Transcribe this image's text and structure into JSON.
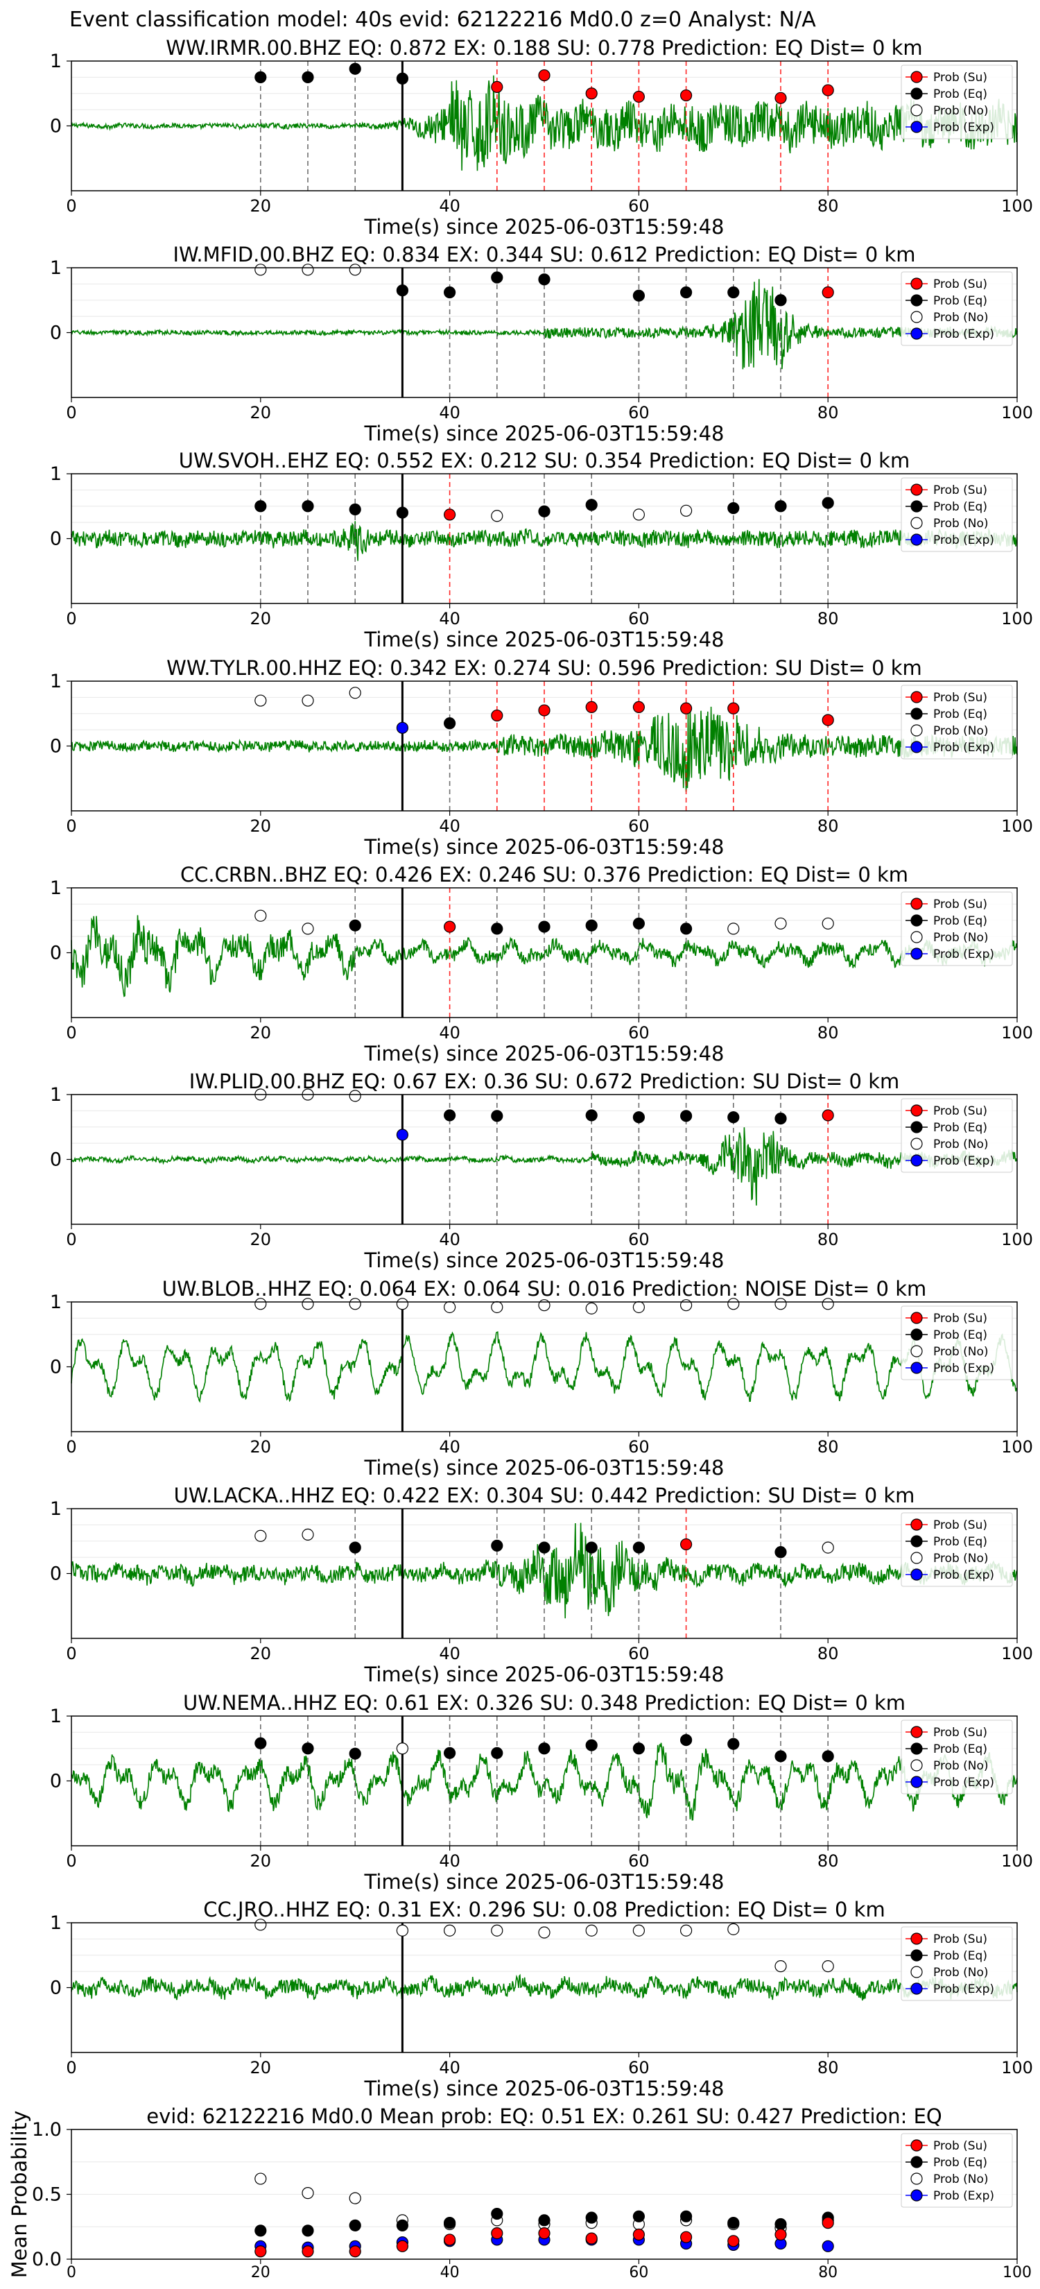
{
  "figure_title": "Event classification model: 40s evid: 62122216 Md0.0 z=0 Analyst: N/A",
  "legend": [
    "Prob (Su)",
    "Prob (Eq)",
    "Prob (No)",
    "Prob (Exp)"
  ],
  "colors": {
    "su": "#ff0000",
    "eq": "#000000",
    "no": "#ffffff",
    "exp": "#0000ff",
    "waveform": "#008000",
    "line_su": "#ff0000",
    "line_eq": "#555555"
  },
  "chart_data": [
    {
      "type": "line",
      "title": "WW.IRMR.00.BHZ   EQ: 0.872  EX: 0.188  SU: 0.778   Prediction: EQ    Dist= 0 km",
      "xlabel": "Time(s) since 2025-06-03T15:59:48",
      "ylabel": "",
      "xlim": [
        0,
        100
      ],
      "ylim": [
        -1,
        1
      ],
      "xticks": [
        0,
        20,
        40,
        60,
        80,
        100
      ],
      "yticks": [
        1,
        0
      ],
      "grid": true,
      "legend_position": "top-right",
      "waveform": {
        "pre_amp": 0.05,
        "post_amp": 0.45,
        "onset": 40,
        "burst_center": 42,
        "burst_width": 5,
        "burst_amp": 0.5,
        "osc": 0.3
      },
      "arrival_time": 35,
      "points": [
        {
          "t": 20,
          "p": 0.75,
          "c": "eq"
        },
        {
          "t": 25,
          "p": 0.75,
          "c": "eq"
        },
        {
          "t": 30,
          "p": 0.88,
          "c": "eq"
        },
        {
          "t": 35,
          "p": 0.73,
          "c": "eq"
        },
        {
          "t": 45,
          "p": 0.6,
          "c": "su"
        },
        {
          "t": 50,
          "p": 0.78,
          "c": "su"
        },
        {
          "t": 55,
          "p": 0.5,
          "c": "su"
        },
        {
          "t": 60,
          "p": 0.45,
          "c": "su"
        },
        {
          "t": 65,
          "p": 0.47,
          "c": "su"
        },
        {
          "t": 75,
          "p": 0.43,
          "c": "su"
        },
        {
          "t": 80,
          "p": 0.55,
          "c": "su"
        }
      ]
    },
    {
      "type": "line",
      "title": "IW.MFID.00.BHZ   EQ: 0.834  EX: 0.344  SU: 0.612   Prediction: EQ    Dist= 0 km",
      "xlabel": "Time(s) since 2025-06-03T15:59:48",
      "ylabel": "",
      "xlim": [
        0,
        100
      ],
      "ylim": [
        -1,
        1
      ],
      "xticks": [
        0,
        20,
        40,
        60,
        80,
        100
      ],
      "yticks": [
        1,
        0
      ],
      "grid": true,
      "legend_position": "top-right",
      "waveform": {
        "pre_amp": 0.04,
        "post_amp": 0.1,
        "onset": 50,
        "burst_center": 73,
        "burst_width": 3,
        "burst_amp": 0.9,
        "osc": 0.2
      },
      "arrival_time": 35,
      "points": [
        {
          "t": 20,
          "p": 0.97,
          "c": "no"
        },
        {
          "t": 25,
          "p": 0.97,
          "c": "no"
        },
        {
          "t": 30,
          "p": 0.97,
          "c": "no"
        },
        {
          "t": 35,
          "p": 0.65,
          "c": "eq"
        },
        {
          "t": 40,
          "p": 0.62,
          "c": "eq"
        },
        {
          "t": 45,
          "p": 0.85,
          "c": "eq"
        },
        {
          "t": 50,
          "p": 0.82,
          "c": "eq"
        },
        {
          "t": 60,
          "p": 0.57,
          "c": "eq"
        },
        {
          "t": 65,
          "p": 0.62,
          "c": "eq"
        },
        {
          "t": 70,
          "p": 0.62,
          "c": "eq"
        },
        {
          "t": 75,
          "p": 0.5,
          "c": "eq"
        },
        {
          "t": 80,
          "p": 0.62,
          "c": "su"
        }
      ]
    },
    {
      "type": "line",
      "title": "UW.SVOH..EHZ   EQ: 0.552  EX: 0.212  SU: 0.354   Prediction: EQ    Dist= 0 km",
      "xlabel": "Time(s) since 2025-06-03T15:59:48",
      "ylabel": "",
      "xlim": [
        0,
        100
      ],
      "ylim": [
        -1,
        1
      ],
      "xticks": [
        0,
        20,
        40,
        60,
        80,
        100
      ],
      "yticks": [
        1,
        0
      ],
      "grid": true,
      "legend_position": "top-right",
      "waveform": {
        "pre_amp": 0.15,
        "post_amp": 0.15,
        "onset": 0,
        "burst_center": 30,
        "burst_width": 1,
        "burst_amp": 0.3,
        "osc": 0.2
      },
      "arrival_time": 35,
      "points": [
        {
          "t": 20,
          "p": 0.5,
          "c": "eq"
        },
        {
          "t": 25,
          "p": 0.5,
          "c": "eq"
        },
        {
          "t": 30,
          "p": 0.45,
          "c": "eq"
        },
        {
          "t": 35,
          "p": 0.4,
          "c": "eq"
        },
        {
          "t": 40,
          "p": 0.37,
          "c": "su"
        },
        {
          "t": 45,
          "p": 0.35,
          "c": "no"
        },
        {
          "t": 50,
          "p": 0.42,
          "c": "eq"
        },
        {
          "t": 55,
          "p": 0.52,
          "c": "eq"
        },
        {
          "t": 60,
          "p": 0.37,
          "c": "no"
        },
        {
          "t": 65,
          "p": 0.43,
          "c": "no"
        },
        {
          "t": 70,
          "p": 0.47,
          "c": "eq"
        },
        {
          "t": 75,
          "p": 0.5,
          "c": "eq"
        },
        {
          "t": 80,
          "p": 0.55,
          "c": "eq"
        }
      ]
    },
    {
      "type": "line",
      "title": "WW.TYLR.00.HHZ   EQ: 0.342  EX: 0.274  SU: 0.596   Prediction: SU    Dist= 0 km",
      "xlabel": "Time(s) since 2025-06-03T15:59:48",
      "ylabel": "",
      "xlim": [
        0,
        100
      ],
      "ylim": [
        -1,
        1
      ],
      "xticks": [
        0,
        20,
        40,
        60,
        80,
        100
      ],
      "yticks": [
        1,
        0
      ],
      "grid": true,
      "legend_position": "top-right",
      "waveform": {
        "pre_amp": 0.1,
        "post_amp": 0.2,
        "onset": 45,
        "burst_center": 66,
        "burst_width": 6,
        "burst_amp": 0.6,
        "osc": 0.2
      },
      "arrival_time": 35,
      "points": [
        {
          "t": 20,
          "p": 0.7,
          "c": "no"
        },
        {
          "t": 25,
          "p": 0.7,
          "c": "no"
        },
        {
          "t": 30,
          "p": 0.82,
          "c": "no"
        },
        {
          "t": 35,
          "p": 0.28,
          "c": "exp"
        },
        {
          "t": 40,
          "p": 0.35,
          "c": "eq"
        },
        {
          "t": 45,
          "p": 0.47,
          "c": "su"
        },
        {
          "t": 50,
          "p": 0.55,
          "c": "su"
        },
        {
          "t": 55,
          "p": 0.6,
          "c": "su"
        },
        {
          "t": 60,
          "p": 0.6,
          "c": "su"
        },
        {
          "t": 65,
          "p": 0.58,
          "c": "su"
        },
        {
          "t": 70,
          "p": 0.58,
          "c": "su"
        },
        {
          "t": 80,
          "p": 0.4,
          "c": "su"
        }
      ]
    },
    {
      "type": "line",
      "title": "CC.CRBN..BHZ   EQ: 0.426  EX: 0.246  SU: 0.376   Prediction: EQ    Dist= 0 km",
      "xlabel": "Time(s) since 2025-06-03T15:59:48",
      "ylabel": "",
      "xlim": [
        0,
        100
      ],
      "ylim": [
        -1,
        1
      ],
      "xticks": [
        0,
        20,
        40,
        60,
        80,
        100
      ],
      "yticks": [
        1,
        0
      ],
      "grid": true,
      "legend_position": "top-right",
      "waveform": {
        "pre_amp": 0.45,
        "post_amp": 0.25,
        "onset": 30,
        "burst_center": 5,
        "burst_width": 10,
        "burst_amp": 0.3,
        "osc": 0.6
      },
      "arrival_time": 35,
      "points": [
        {
          "t": 20,
          "p": 0.57,
          "c": "no"
        },
        {
          "t": 25,
          "p": 0.37,
          "c": "no"
        },
        {
          "t": 30,
          "p": 0.42,
          "c": "eq"
        },
        {
          "t": 40,
          "p": 0.4,
          "c": "su"
        },
        {
          "t": 45,
          "p": 0.37,
          "c": "eq"
        },
        {
          "t": 50,
          "p": 0.4,
          "c": "eq"
        },
        {
          "t": 55,
          "p": 0.42,
          "c": "eq"
        },
        {
          "t": 60,
          "p": 0.45,
          "c": "eq"
        },
        {
          "t": 65,
          "p": 0.37,
          "c": "eq"
        },
        {
          "t": 70,
          "p": 0.37,
          "c": "no"
        },
        {
          "t": 75,
          "p": 0.45,
          "c": "no"
        },
        {
          "t": 80,
          "p": 0.45,
          "c": "no"
        }
      ]
    },
    {
      "type": "line",
      "title": "IW.PLID.00.BHZ   EQ: 0.67  EX: 0.36  SU: 0.672   Prediction: SU    Dist= 0 km",
      "xlabel": "Time(s) since 2025-06-03T15:59:48",
      "ylabel": "",
      "xlim": [
        0,
        100
      ],
      "ylim": [
        -1,
        1
      ],
      "xticks": [
        0,
        20,
        40,
        60,
        80,
        100
      ],
      "yticks": [
        1,
        0
      ],
      "grid": true,
      "legend_position": "top-right",
      "waveform": {
        "pre_amp": 0.06,
        "post_amp": 0.15,
        "onset": 55,
        "burst_center": 72,
        "burst_width": 3,
        "burst_amp": 0.7,
        "osc": 0.4
      },
      "arrival_time": 35,
      "points": [
        {
          "t": 20,
          "p": 1.0,
          "c": "no"
        },
        {
          "t": 25,
          "p": 1.0,
          "c": "no"
        },
        {
          "t": 30,
          "p": 0.98,
          "c": "no"
        },
        {
          "t": 35,
          "p": 0.38,
          "c": "exp"
        },
        {
          "t": 40,
          "p": 0.68,
          "c": "eq"
        },
        {
          "t": 45,
          "p": 0.67,
          "c": "eq"
        },
        {
          "t": 55,
          "p": 0.68,
          "c": "eq"
        },
        {
          "t": 60,
          "p": 0.65,
          "c": "eq"
        },
        {
          "t": 65,
          "p": 0.67,
          "c": "eq"
        },
        {
          "t": 70,
          "p": 0.65,
          "c": "eq"
        },
        {
          "t": 75,
          "p": 0.63,
          "c": "eq"
        },
        {
          "t": 80,
          "p": 0.68,
          "c": "su"
        }
      ]
    },
    {
      "type": "line",
      "title": "UW.BLOB..HHZ   EQ: 0.064  EX: 0.064  SU: 0.016   Prediction: NOISE    Dist= 0 km",
      "xlabel": "Time(s) since 2025-06-03T15:59:48",
      "ylabel": "",
      "xlim": [
        0,
        100
      ],
      "ylim": [
        -1,
        1
      ],
      "xticks": [
        0,
        20,
        40,
        60,
        80,
        100
      ],
      "yticks": [
        1,
        0
      ],
      "grid": true,
      "legend_position": "top-right",
      "waveform": {
        "pre_amp": 0.55,
        "post_amp": 0.55,
        "onset": 0,
        "burst_center": 50,
        "burst_width": 1,
        "burst_amp": 0.0,
        "osc": 0.85
      },
      "arrival_time": 35,
      "points": [
        {
          "t": 20,
          "p": 0.97,
          "c": "no"
        },
        {
          "t": 25,
          "p": 0.97,
          "c": "no"
        },
        {
          "t": 30,
          "p": 0.97,
          "c": "no"
        },
        {
          "t": 35,
          "p": 0.97,
          "c": "no"
        },
        {
          "t": 40,
          "p": 0.92,
          "c": "no"
        },
        {
          "t": 45,
          "p": 0.92,
          "c": "no"
        },
        {
          "t": 50,
          "p": 0.95,
          "c": "no"
        },
        {
          "t": 55,
          "p": 0.9,
          "c": "no"
        },
        {
          "t": 60,
          "p": 0.92,
          "c": "no"
        },
        {
          "t": 65,
          "p": 0.95,
          "c": "no"
        },
        {
          "t": 70,
          "p": 0.97,
          "c": "no"
        },
        {
          "t": 75,
          "p": 0.97,
          "c": "no"
        },
        {
          "t": 80,
          "p": 0.97,
          "c": "no"
        }
      ]
    },
    {
      "type": "line",
      "title": "UW.LACKA..HHZ   EQ: 0.422  EX: 0.304  SU: 0.442   Prediction: SU    Dist= 0 km",
      "xlabel": "Time(s) since 2025-06-03T15:59:48",
      "ylabel": "",
      "xlim": [
        0,
        100
      ],
      "ylim": [
        -1,
        1
      ],
      "xticks": [
        0,
        20,
        40,
        60,
        80,
        100
      ],
      "yticks": [
        1,
        0
      ],
      "grid": true,
      "legend_position": "top-right",
      "waveform": {
        "pre_amp": 0.2,
        "post_amp": 0.2,
        "onset": 40,
        "burst_center": 54,
        "burst_width": 6,
        "burst_amp": 0.7,
        "osc": 0.4
      },
      "arrival_time": 35,
      "points": [
        {
          "t": 20,
          "p": 0.58,
          "c": "no"
        },
        {
          "t": 25,
          "p": 0.6,
          "c": "no"
        },
        {
          "t": 30,
          "p": 0.4,
          "c": "eq"
        },
        {
          "t": 45,
          "p": 0.43,
          "c": "eq"
        },
        {
          "t": 50,
          "p": 0.4,
          "c": "eq"
        },
        {
          "t": 55,
          "p": 0.4,
          "c": "eq"
        },
        {
          "t": 60,
          "p": 0.4,
          "c": "eq"
        },
        {
          "t": 65,
          "p": 0.45,
          "c": "su"
        },
        {
          "t": 75,
          "p": 0.33,
          "c": "eq"
        },
        {
          "t": 80,
          "p": 0.4,
          "c": "no"
        }
      ]
    },
    {
      "type": "line",
      "title": "UW.NEMA..HHZ   EQ: 0.61  EX: 0.326  SU: 0.348   Prediction: EQ    Dist= 0 km",
      "xlabel": "Time(s) since 2025-06-03T15:59:48",
      "ylabel": "",
      "xlim": [
        0,
        100
      ],
      "ylim": [
        -1,
        1
      ],
      "xticks": [
        0,
        20,
        40,
        60,
        80,
        100
      ],
      "yticks": [
        1,
        0
      ],
      "grid": true,
      "legend_position": "top-right",
      "waveform": {
        "pre_amp": 0.5,
        "post_amp": 0.5,
        "onset": 0,
        "burst_center": 63,
        "burst_width": 4,
        "burst_amp": 0.3,
        "osc": 0.75
      },
      "arrival_time": 35,
      "points": [
        {
          "t": 20,
          "p": 0.58,
          "c": "eq"
        },
        {
          "t": 25,
          "p": 0.5,
          "c": "eq"
        },
        {
          "t": 30,
          "p": 0.42,
          "c": "eq"
        },
        {
          "t": 35,
          "p": 0.5,
          "c": "no"
        },
        {
          "t": 40,
          "p": 0.43,
          "c": "eq"
        },
        {
          "t": 45,
          "p": 0.43,
          "c": "eq"
        },
        {
          "t": 50,
          "p": 0.5,
          "c": "eq"
        },
        {
          "t": 55,
          "p": 0.55,
          "c": "eq"
        },
        {
          "t": 60,
          "p": 0.5,
          "c": "eq"
        },
        {
          "t": 65,
          "p": 0.63,
          "c": "eq"
        },
        {
          "t": 70,
          "p": 0.57,
          "c": "eq"
        },
        {
          "t": 75,
          "p": 0.38,
          "c": "eq"
        },
        {
          "t": 80,
          "p": 0.38,
          "c": "eq"
        }
      ]
    },
    {
      "type": "line",
      "title": "CC.JRO..HHZ   EQ: 0.31  EX: 0.296  SU: 0.08   Prediction: EQ    Dist= 0 km",
      "xlabel": "Time(s) since 2025-06-03T15:59:48",
      "ylabel": "",
      "xlim": [
        0,
        100
      ],
      "ylim": [
        -1,
        1
      ],
      "xticks": [
        0,
        20,
        40,
        60,
        80,
        100
      ],
      "yticks": [
        1,
        0
      ],
      "grid": true,
      "legend_position": "top-right",
      "waveform": {
        "pre_amp": 0.2,
        "post_amp": 0.2,
        "onset": 0,
        "burst_center": 50,
        "burst_width": 1,
        "burst_amp": 0.0,
        "osc": 0.45
      },
      "arrival_time": 35,
      "points": [
        {
          "t": 20,
          "p": 0.97,
          "c": "no"
        },
        {
          "t": 35,
          "p": 0.88,
          "c": "no"
        },
        {
          "t": 40,
          "p": 0.88,
          "c": "no"
        },
        {
          "t": 45,
          "p": 0.88,
          "c": "no"
        },
        {
          "t": 50,
          "p": 0.85,
          "c": "no"
        },
        {
          "t": 55,
          "p": 0.88,
          "c": "no"
        },
        {
          "t": 60,
          "p": 0.88,
          "c": "no"
        },
        {
          "t": 65,
          "p": 0.88,
          "c": "no"
        },
        {
          "t": 70,
          "p": 0.9,
          "c": "no"
        },
        {
          "t": 75,
          "p": 0.33,
          "c": "no"
        },
        {
          "t": 80,
          "p": 0.33,
          "c": "no"
        }
      ]
    },
    {
      "type": "scatter",
      "title": "evid: 62122216  Md0.0   Mean prob:   EQ: 0.51  EX: 0.261  SU: 0.427   Prediction: EQ",
      "xlabel": "",
      "ylabel": "Mean Probability",
      "xlim": [
        0,
        100
      ],
      "ylim": [
        0,
        1
      ],
      "xticks": [
        0,
        20,
        40,
        60,
        80,
        100
      ],
      "yticks": [
        1.0,
        0.5,
        0.0
      ],
      "grid": true,
      "legend_position": "top-right",
      "x": [
        20,
        25,
        30,
        35,
        40,
        45,
        50,
        55,
        60,
        65,
        70,
        75,
        80
      ],
      "series": [
        {
          "name": "Prob (No)",
          "c": "no",
          "values": [
            0.62,
            0.51,
            0.47,
            0.3,
            0.27,
            0.3,
            0.27,
            0.28,
            0.27,
            0.3,
            0.27,
            0.24,
            0.3
          ]
        },
        {
          "name": "Prob (Eq)",
          "c": "eq",
          "values": [
            0.22,
            0.22,
            0.26,
            0.26,
            0.28,
            0.35,
            0.3,
            0.32,
            0.33,
            0.33,
            0.28,
            0.27,
            0.32
          ]
        },
        {
          "name": "Prob (Exp)",
          "c": "exp",
          "values": [
            0.1,
            0.09,
            0.1,
            0.13,
            0.14,
            0.15,
            0.15,
            0.15,
            0.15,
            0.12,
            0.11,
            0.12,
            0.1
          ]
        },
        {
          "name": "Prob (Su)",
          "c": "su",
          "values": [
            0.06,
            0.06,
            0.06,
            0.1,
            0.15,
            0.2,
            0.2,
            0.16,
            0.19,
            0.17,
            0.14,
            0.19,
            0.28
          ]
        }
      ]
    }
  ]
}
